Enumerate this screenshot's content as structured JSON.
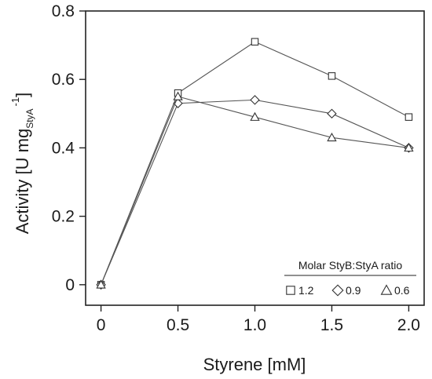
{
  "chart_data": {
    "type": "line",
    "xlabel": "Styrene [mM]",
    "ylabel": {
      "main": "Activity [U mg",
      "subscript": "StyA",
      "superscript": "-1",
      "close": "]"
    },
    "xlim": [
      -0.1,
      2.1
    ],
    "ylim": [
      -0.06,
      0.8
    ],
    "xticks": [
      0,
      0.5,
      1.0,
      1.5,
      2.0
    ],
    "xtick_labels": [
      "0",
      "0.5",
      "1.0",
      "1.5",
      "2.0"
    ],
    "yticks": [
      0,
      0.2,
      0.4,
      0.6,
      0.8
    ],
    "ytick_labels": [
      "0",
      "0.2",
      "0.4",
      "0.6",
      "0.8"
    ],
    "grid": false,
    "legend": {
      "title": "Molar StyB:StyA ratio",
      "placement": "bottom-right"
    },
    "x": [
      0,
      0.5,
      1.0,
      1.5,
      2.0
    ],
    "series": [
      {
        "name": "1.2",
        "marker": "square",
        "values": [
          0,
          0.56,
          0.71,
          0.61,
          0.49
        ]
      },
      {
        "name": "0.9",
        "marker": "diamond",
        "values": [
          0,
          0.53,
          0.54,
          0.5,
          0.4
        ]
      },
      {
        "name": "0.6",
        "marker": "triangle",
        "values": [
          0,
          0.55,
          0.49,
          0.43,
          0.4
        ]
      }
    ],
    "line_color": "#555555",
    "marker_color": "#333333"
  }
}
